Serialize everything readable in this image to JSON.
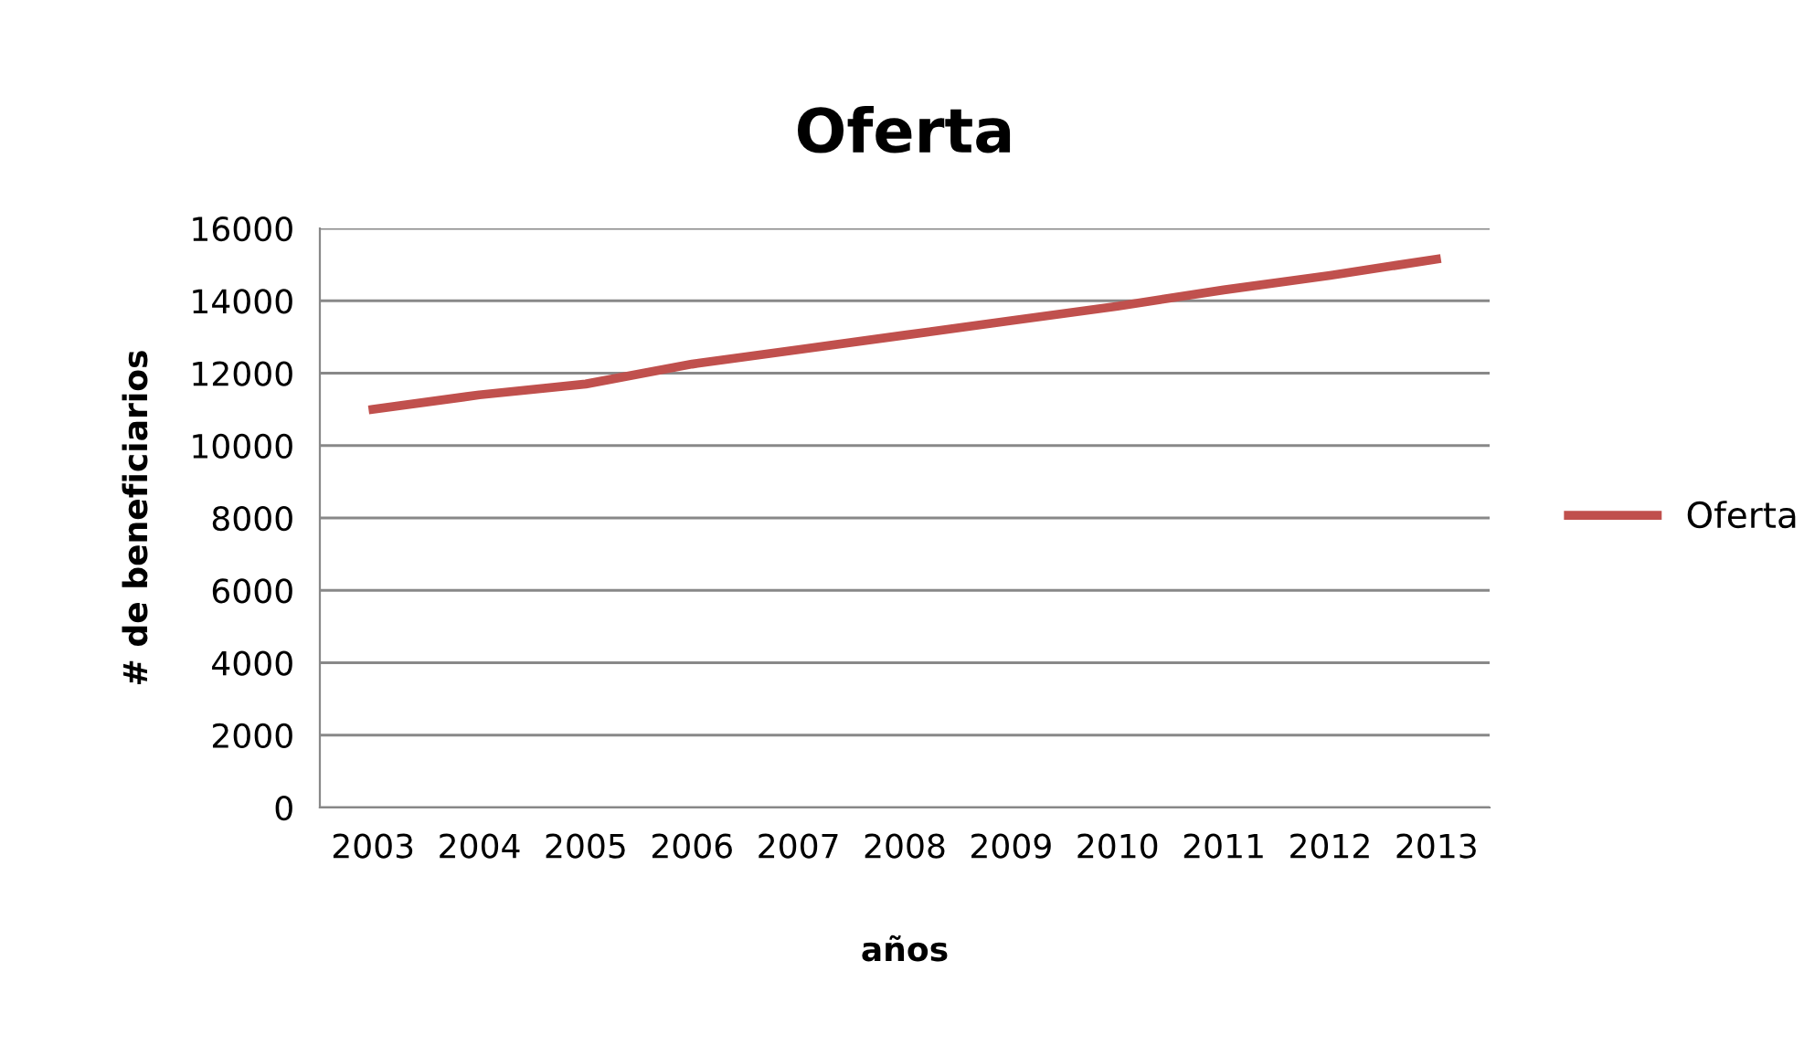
{
  "chart_data": {
    "type": "line",
    "title": "Oferta",
    "xlabel": "años",
    "ylabel": "# de beneficiarios",
    "categories": [
      "2003",
      "2004",
      "2005",
      "2006",
      "2007",
      "2008",
      "2009",
      "2010",
      "2011",
      "2012",
      "2013"
    ],
    "series": [
      {
        "name": "Oferta",
        "color": "#c0504d",
        "values": [
          11000,
          11400,
          11700,
          12250,
          12650,
          13050,
          13450,
          13850,
          14300,
          14700,
          15150
        ]
      }
    ],
    "ylim": [
      0,
      16000
    ],
    "yticks": [
      0,
      2000,
      4000,
      6000,
      8000,
      10000,
      12000,
      14000,
      16000
    ],
    "grid": "y",
    "legend": "right"
  }
}
